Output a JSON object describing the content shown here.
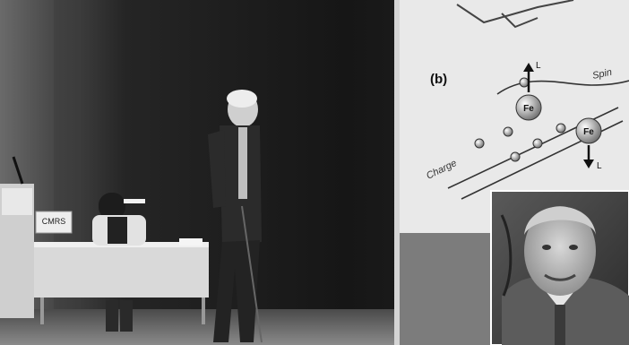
{
  "photo": {
    "description_free": true
  },
  "slide": {
    "panel_label": "(b)",
    "spin_label": "Spin",
    "charge_label": "Charge",
    "atom_label_1": "Fe",
    "atom_label_2": "Fe",
    "moment_label_top": "L",
    "moment_label_bottom": "L"
  },
  "podium_sign": {
    "text": "CMRS"
  },
  "colors": {
    "wall_dark": "#141414",
    "wall_mid": "#3a3a3a",
    "screen": "#e9e9e9",
    "table": "#d9d9d9"
  }
}
